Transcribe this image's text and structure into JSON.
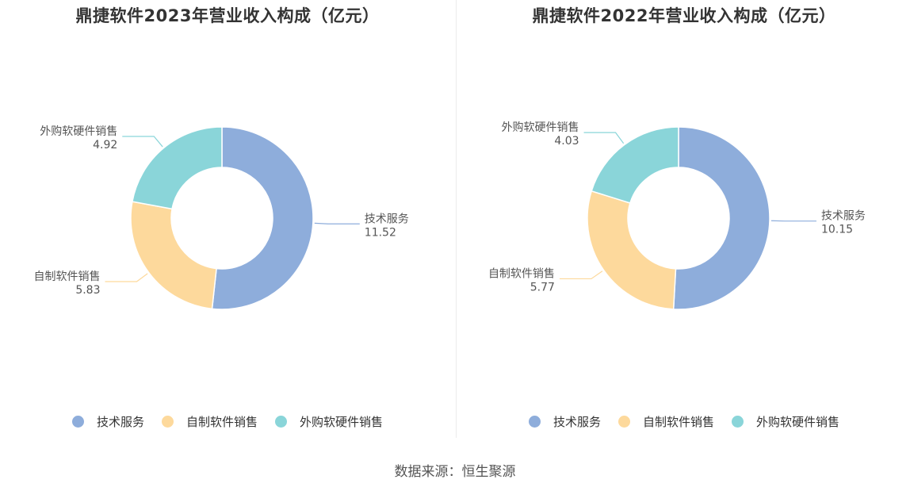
{
  "source": "数据来源：恒生聚源",
  "colors": [
    "#8eaddb",
    "#fdd99c",
    "#8ad5d9"
  ],
  "legend_labels": [
    "技术服务",
    "自制软件销售",
    "外购软硬件销售"
  ],
  "chart_data": [
    {
      "type": "pie",
      "title": "鼎捷软件2023年营业收入构成（亿元）",
      "categories": [
        "技术服务",
        "自制软件销售",
        "外购软硬件销售"
      ],
      "values": [
        11.52,
        5.83,
        4.92
      ],
      "value_labels": [
        "11.52",
        "5.83",
        "4.92"
      ],
      "legend_position": "bottom"
    },
    {
      "type": "pie",
      "title": "鼎捷软件2022年营业收入构成（亿元）",
      "categories": [
        "技术服务",
        "自制软件销售",
        "外购软硬件销售"
      ],
      "values": [
        10.15,
        5.77,
        4.03
      ],
      "value_labels": [
        "10.15",
        "5.77",
        "4.03"
      ],
      "legend_position": "bottom"
    }
  ]
}
